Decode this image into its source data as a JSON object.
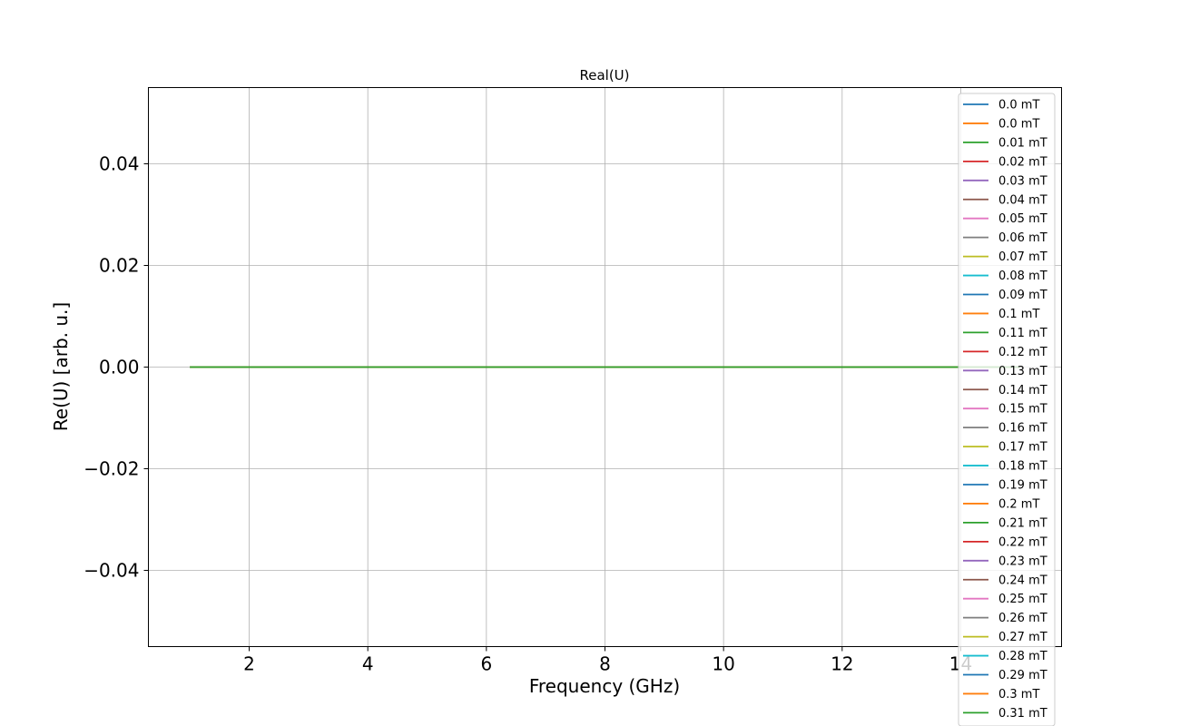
{
  "chart_data": {
    "type": "line",
    "title": "Real(U)",
    "xlabel": "Frequency (GHz)",
    "ylabel": "Re(U) [arb. u.]",
    "xlim": [
      0.3,
      15.7
    ],
    "ylim": [
      -0.055,
      0.055
    ],
    "xticks": [
      2,
      4,
      6,
      8,
      10,
      12,
      14
    ],
    "xtick_labels": [
      "2",
      "4",
      "6",
      "8",
      "10",
      "12",
      "14"
    ],
    "yticks": [
      -0.04,
      -0.02,
      0.0,
      0.02,
      0.04
    ],
    "ytick_labels": [
      "−0.04",
      "−0.02",
      "0.00",
      "0.02",
      "0.04"
    ],
    "grid": true,
    "legend_position": "top-right",
    "x": [
      1,
      15
    ],
    "series": [
      {
        "name": "0.0 mT",
        "color": "#1f77b4",
        "values": [
          0,
          0
        ]
      },
      {
        "name": "0.0 mT",
        "color": "#ff7f0e",
        "values": [
          0,
          0
        ]
      },
      {
        "name": "0.01 mT",
        "color": "#2ca02c",
        "values": [
          0,
          0
        ]
      },
      {
        "name": "0.02 mT",
        "color": "#d62728",
        "values": [
          0,
          0
        ]
      },
      {
        "name": "0.03 mT",
        "color": "#9467bd",
        "values": [
          0,
          0
        ]
      },
      {
        "name": "0.04 mT",
        "color": "#8c564b",
        "values": [
          0,
          0
        ]
      },
      {
        "name": "0.05 mT",
        "color": "#e377c2",
        "values": [
          0,
          0
        ]
      },
      {
        "name": "0.06 mT",
        "color": "#7f7f7f",
        "values": [
          0,
          0
        ]
      },
      {
        "name": "0.07 mT",
        "color": "#bcbd22",
        "values": [
          0,
          0
        ]
      },
      {
        "name": "0.08 mT",
        "color": "#17becf",
        "values": [
          0,
          0
        ]
      },
      {
        "name": "0.09 mT",
        "color": "#1f77b4",
        "values": [
          0,
          0
        ]
      },
      {
        "name": "0.1 mT",
        "color": "#ff7f0e",
        "values": [
          0,
          0
        ]
      },
      {
        "name": "0.11 mT",
        "color": "#2ca02c",
        "values": [
          0,
          0
        ]
      },
      {
        "name": "0.12 mT",
        "color": "#d62728",
        "values": [
          0,
          0
        ]
      },
      {
        "name": "0.13 mT",
        "color": "#9467bd",
        "values": [
          0,
          0
        ]
      },
      {
        "name": "0.14 mT",
        "color": "#8c564b",
        "values": [
          0,
          0
        ]
      },
      {
        "name": "0.15 mT",
        "color": "#e377c2",
        "values": [
          0,
          0
        ]
      },
      {
        "name": "0.16 mT",
        "color": "#7f7f7f",
        "values": [
          0,
          0
        ]
      },
      {
        "name": "0.17 mT",
        "color": "#bcbd22",
        "values": [
          0,
          0
        ]
      },
      {
        "name": "0.18 mT",
        "color": "#17becf",
        "values": [
          0,
          0
        ]
      },
      {
        "name": "0.19 mT",
        "color": "#1f77b4",
        "values": [
          0,
          0
        ]
      },
      {
        "name": "0.2 mT",
        "color": "#ff7f0e",
        "values": [
          0,
          0
        ]
      },
      {
        "name": "0.21 mT",
        "color": "#2ca02c",
        "values": [
          0,
          0
        ]
      },
      {
        "name": "0.22 mT",
        "color": "#d62728",
        "values": [
          0,
          0
        ]
      },
      {
        "name": "0.23 mT",
        "color": "#9467bd",
        "values": [
          0,
          0
        ]
      },
      {
        "name": "0.24 mT",
        "color": "#8c564b",
        "values": [
          0,
          0
        ]
      },
      {
        "name": "0.25 mT",
        "color": "#e377c2",
        "values": [
          0,
          0
        ]
      },
      {
        "name": "0.26 mT",
        "color": "#7f7f7f",
        "values": [
          0,
          0
        ]
      },
      {
        "name": "0.27 mT",
        "color": "#bcbd22",
        "values": [
          0,
          0
        ]
      },
      {
        "name": "0.28 mT",
        "color": "#17becf",
        "values": [
          0,
          0
        ]
      },
      {
        "name": "0.29 mT",
        "color": "#1f77b4",
        "values": [
          0,
          0
        ]
      },
      {
        "name": "0.3 mT",
        "color": "#ff7f0e",
        "values": [
          0,
          0
        ]
      },
      {
        "name": "0.31 mT",
        "color": "#2ca02c",
        "values": [
          0,
          0
        ]
      }
    ]
  }
}
